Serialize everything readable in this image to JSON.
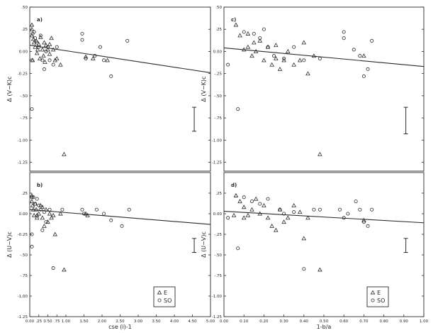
{
  "chart_data": [
    {
      "panel": "a",
      "label": "a)",
      "type": "scatter",
      "xlabel": "",
      "ylabel": "Δ (V−K)c",
      "xlim": [
        0,
        5.0
      ],
      "ylim": [
        -1.35,
        0.5
      ],
      "xticks": [],
      "x_tick_labels": [],
      "yticks": [
        0.5,
        0.25,
        0,
        -0.25,
        -0.5,
        -0.75,
        -1.0,
        -1.25
      ],
      "y_tick_labels": [
        ".50",
        ".25",
        "0.00",
        "-0.25",
        "-.50",
        "-.75",
        "-1.00",
        "-1.25"
      ],
      "fit_line": {
        "x": [
          0,
          5.0
        ],
        "y": [
          0.07,
          -0.24
        ]
      },
      "error_bar": {
        "x": 4.55,
        "y_low": -0.9,
        "y_high": -0.63
      },
      "series": [
        {
          "name": "E",
          "marker": "triangle",
          "points": [
            [
              0.02,
              0.3
            ],
            [
              0.05,
              0.25
            ],
            [
              0.06,
              0.18
            ],
            [
              0.1,
              0.14
            ],
            [
              0.12,
              0.1
            ],
            [
              0.15,
              0.05
            ],
            [
              0.18,
              0.12
            ],
            [
              0.2,
              -0.02
            ],
            [
              0.22,
              0.02
            ],
            [
              0.25,
              0.08
            ],
            [
              0.28,
              -0.08
            ],
            [
              0.3,
              0.16
            ],
            [
              0.35,
              0.02
            ],
            [
              0.38,
              -0.05
            ],
            [
              0.42,
              -0.12
            ],
            [
              0.45,
              0.07
            ],
            [
              0.5,
              0.02
            ],
            [
              0.55,
              -0.03
            ],
            [
              0.6,
              0.15
            ],
            [
              0.65,
              0.02
            ],
            [
              0.7,
              -0.1
            ],
            [
              0.75,
              -0.08
            ],
            [
              0.85,
              -0.15
            ],
            [
              0.95,
              -1.16
            ],
            [
              1.55,
              -0.06
            ],
            [
              1.75,
              -0.08
            ],
            [
              2.15,
              -0.1
            ],
            [
              0.08,
              -0.1
            ],
            [
              0.4,
              0.1
            ],
            [
              0.55,
              0.08
            ]
          ]
        },
        {
          "name": "SO",
          "marker": "circle",
          "points": [
            [
              0.02,
              -0.65
            ],
            [
              0.03,
              -0.1
            ],
            [
              0.08,
              0.2
            ],
            [
              0.12,
              0.22
            ],
            [
              0.15,
              0.15
            ],
            [
              0.2,
              0.1
            ],
            [
              0.25,
              0.05
            ],
            [
              0.3,
              0.18
            ],
            [
              0.35,
              -0.1
            ],
            [
              0.4,
              -0.2
            ],
            [
              0.45,
              0.0
            ],
            [
              0.55,
              -0.1
            ],
            [
              0.65,
              -0.15
            ],
            [
              0.75,
              0.05
            ],
            [
              1.45,
              0.2
            ],
            [
              1.45,
              0.13
            ],
            [
              1.55,
              -0.08
            ],
            [
              1.8,
              -0.05
            ],
            [
              1.95,
              0.05
            ],
            [
              2.05,
              -0.1
            ],
            [
              2.25,
              -0.28
            ],
            [
              2.7,
              0.12
            ],
            [
              0.5,
              0.05
            ]
          ]
        }
      ]
    },
    {
      "panel": "b",
      "label": "b)",
      "type": "scatter",
      "xlabel": "cse (i)-1",
      "ylabel": "Δ (U−V)c",
      "xlim": [
        0,
        5.0
      ],
      "ylim": [
        -1.25,
        0.5
      ],
      "xticks": [
        0,
        0.25,
        0.5,
        0.75,
        1.0,
        1.5,
        2.0,
        2.5,
        3.0,
        3.5,
        4.0,
        4.5,
        5.0
      ],
      "x_tick_labels": [
        "0.00",
        ".25",
        "0.50",
        ".75",
        "1.00",
        "1.50",
        "2.00",
        "2.50",
        "3.00",
        "3.50",
        "4.00",
        "4.50",
        "5.00"
      ],
      "yticks": [
        0.25,
        0,
        -0.25,
        -0.5,
        -0.75,
        -1.0,
        -1.25
      ],
      "y_tick_labels": [
        ".25",
        "0.00",
        "-0.25",
        "-.50",
        "-.75",
        "-1.00",
        "-1.25"
      ],
      "fit_line": {
        "x": [
          0,
          5.0
        ],
        "y": [
          0.05,
          -0.13
        ]
      },
      "error_bar": {
        "x": 4.55,
        "y_low": -0.47,
        "y_high": -0.3
      },
      "series": [
        {
          "name": "E",
          "marker": "triangle",
          "points": [
            [
              0.02,
              0.22
            ],
            [
              0.05,
              0.15
            ],
            [
              0.08,
              0.1
            ],
            [
              0.1,
              0.05
            ],
            [
              0.12,
              -0.02
            ],
            [
              0.15,
              0.12
            ],
            [
              0.18,
              0.05
            ],
            [
              0.2,
              -0.05
            ],
            [
              0.25,
              0.0
            ],
            [
              0.3,
              0.1
            ],
            [
              0.35,
              -0.05
            ],
            [
              0.4,
              -0.15
            ],
            [
              0.45,
              0.05
            ],
            [
              0.5,
              -0.1
            ],
            [
              0.55,
              0.0
            ],
            [
              0.6,
              -0.05
            ],
            [
              0.65,
              -0.02
            ],
            [
              0.7,
              -0.25
            ],
            [
              0.85,
              0.0
            ],
            [
              0.95,
              -0.68
            ],
            [
              1.55,
              0.0
            ],
            [
              1.6,
              -0.02
            ],
            [
              0.2,
              -0.02
            ],
            [
              0.35,
              0.08
            ]
          ]
        },
        {
          "name": "SO",
          "marker": "circle",
          "points": [
            [
              0.02,
              -0.4
            ],
            [
              0.04,
              -0.25
            ],
            [
              0.06,
              0.2
            ],
            [
              0.1,
              0.2
            ],
            [
              0.15,
              0.12
            ],
            [
              0.2,
              0.18
            ],
            [
              0.25,
              0.1
            ],
            [
              0.3,
              0.05
            ],
            [
              0.35,
              -0.2
            ],
            [
              0.4,
              0.02
            ],
            [
              0.45,
              -0.1
            ],
            [
              0.55,
              0.05
            ],
            [
              0.65,
              -0.66
            ],
            [
              0.9,
              0.05
            ],
            [
              1.45,
              0.05
            ],
            [
              1.5,
              0.0
            ],
            [
              1.85,
              0.05
            ],
            [
              2.05,
              0.0
            ],
            [
              2.25,
              -0.08
            ],
            [
              2.55,
              -0.15
            ],
            [
              2.75,
              0.05
            ]
          ]
        }
      ],
      "legend": [
        {
          "marker": "triangle",
          "label": "E"
        },
        {
          "marker": "circle",
          "label": "SO"
        }
      ]
    },
    {
      "panel": "c",
      "label": "c)",
      "type": "scatter",
      "xlabel": "",
      "ylabel": "Δ (V−K)c",
      "xlim": [
        0,
        1.0
      ],
      "ylim": [
        -1.35,
        0.5
      ],
      "xticks": [],
      "x_tick_labels": [],
      "yticks": [
        0.5,
        0.25,
        0,
        -0.25,
        -0.5,
        -0.75,
        -1.0,
        -1.25
      ],
      "y_tick_labels": [
        ".50",
        ".25",
        "0.00",
        "-.25",
        "-.50",
        "-.75",
        "-1.00",
        "-1.25"
      ],
      "fit_line": {
        "x": [
          0,
          1.0
        ],
        "y": [
          0.04,
          -0.17
        ]
      },
      "error_bar": {
        "x": 0.91,
        "y_low": -0.93,
        "y_high": -0.63
      },
      "series": [
        {
          "name": "E",
          "marker": "triangle",
          "points": [
            [
              0.06,
              0.3
            ],
            [
              0.08,
              0.18
            ],
            [
              0.1,
              0.02
            ],
            [
              0.12,
              0.05
            ],
            [
              0.14,
              -0.05
            ],
            [
              0.15,
              0.1
            ],
            [
              0.16,
              0.0
            ],
            [
              0.18,
              0.12
            ],
            [
              0.2,
              -0.1
            ],
            [
              0.22,
              0.05
            ],
            [
              0.24,
              -0.15
            ],
            [
              0.26,
              -0.08
            ],
            [
              0.28,
              -0.2
            ],
            [
              0.3,
              -0.1
            ],
            [
              0.32,
              0.0
            ],
            [
              0.35,
              -0.15
            ],
            [
              0.38,
              -0.1
            ],
            [
              0.4,
              0.1
            ],
            [
              0.42,
              -0.25
            ],
            [
              0.45,
              -0.05
            ],
            [
              0.48,
              -1.16
            ],
            [
              0.7,
              -0.05
            ],
            [
              0.26,
              0.07
            ],
            [
              0.12,
              0.2
            ]
          ]
        },
        {
          "name": "SO",
          "marker": "circle",
          "points": [
            [
              0.02,
              -0.15
            ],
            [
              0.07,
              -0.65
            ],
            [
              0.1,
              0.22
            ],
            [
              0.15,
              0.2
            ],
            [
              0.18,
              0.15
            ],
            [
              0.2,
              0.25
            ],
            [
              0.22,
              0.05
            ],
            [
              0.25,
              -0.05
            ],
            [
              0.3,
              -0.08
            ],
            [
              0.35,
              0.05
            ],
            [
              0.4,
              -0.1
            ],
            [
              0.48,
              -0.08
            ],
            [
              0.6,
              0.22
            ],
            [
              0.6,
              0.15
            ],
            [
              0.65,
              0.02
            ],
            [
              0.68,
              -0.05
            ],
            [
              0.7,
              -0.28
            ],
            [
              0.72,
              -0.2
            ],
            [
              0.74,
              0.12
            ]
          ]
        }
      ]
    },
    {
      "panel": "d",
      "label": "d)",
      "type": "scatter",
      "xlabel": "1-b/a",
      "ylabel": "Δ (U−V)c",
      "xlim": [
        0,
        1.0
      ],
      "ylim": [
        -1.25,
        0.5
      ],
      "xticks": [
        0,
        0.1,
        0.2,
        0.3,
        0.4,
        0.5,
        0.6,
        0.7,
        0.8,
        0.9,
        1.0
      ],
      "x_tick_labels": [
        "0.00",
        "0.10",
        "0.20",
        "0.30",
        "0.40",
        "0.50",
        "0.60",
        "0.70",
        "0.80",
        "0.90",
        "1.00"
      ],
      "yticks": [
        0.25,
        0,
        -0.25,
        -0.5,
        -0.75,
        -1.0,
        -1.25
      ],
      "y_tick_labels": [
        ".25",
        "0.00",
        "-.25",
        "-.50",
        "-.75",
        "-1.00",
        "-1.25"
      ],
      "fit_line": {
        "x": [
          0,
          1.0
        ],
        "y": [
          0.03,
          -0.11
        ]
      },
      "error_bar": {
        "x": 0.91,
        "y_low": -0.47,
        "y_high": -0.3
      },
      "series": [
        {
          "name": "E",
          "marker": "triangle",
          "points": [
            [
              0.06,
              0.22
            ],
            [
              0.08,
              0.15
            ],
            [
              0.1,
              0.08
            ],
            [
              0.12,
              -0.02
            ],
            [
              0.14,
              0.05
            ],
            [
              0.16,
              0.18
            ],
            [
              0.18,
              0.0
            ],
            [
              0.2,
              0.1
            ],
            [
              0.22,
              -0.05
            ],
            [
              0.24,
              -0.15
            ],
            [
              0.26,
              -0.2
            ],
            [
              0.28,
              0.05
            ],
            [
              0.3,
              -0.1
            ],
            [
              0.32,
              -0.05
            ],
            [
              0.35,
              0.1
            ],
            [
              0.38,
              0.02
            ],
            [
              0.4,
              -0.3
            ],
            [
              0.42,
              -0.05
            ],
            [
              0.48,
              -0.68
            ],
            [
              0.7,
              -0.08
            ],
            [
              0.1,
              -0.05
            ],
            [
              0.05,
              -0.02
            ]
          ]
        },
        {
          "name": "SO",
          "marker": "circle",
          "points": [
            [
              0.02,
              -0.05
            ],
            [
              0.07,
              -0.42
            ],
            [
              0.1,
              0.2
            ],
            [
              0.14,
              0.15
            ],
            [
              0.18,
              0.12
            ],
            [
              0.22,
              0.18
            ],
            [
              0.28,
              0.05
            ],
            [
              0.3,
              0.0
            ],
            [
              0.35,
              0.02
            ],
            [
              0.4,
              -0.67
            ],
            [
              0.45,
              0.05
            ],
            [
              0.48,
              0.05
            ],
            [
              0.58,
              0.05
            ],
            [
              0.6,
              -0.05
            ],
            [
              0.62,
              0.0
            ],
            [
              0.66,
              0.15
            ],
            [
              0.68,
              0.05
            ],
            [
              0.7,
              -0.1
            ],
            [
              0.72,
              -0.15
            ],
            [
              0.74,
              0.05
            ]
          ]
        }
      ],
      "legend": [
        {
          "marker": "triangle",
          "label": "E"
        },
        {
          "marker": "circle",
          "label": "SO"
        }
      ]
    }
  ]
}
